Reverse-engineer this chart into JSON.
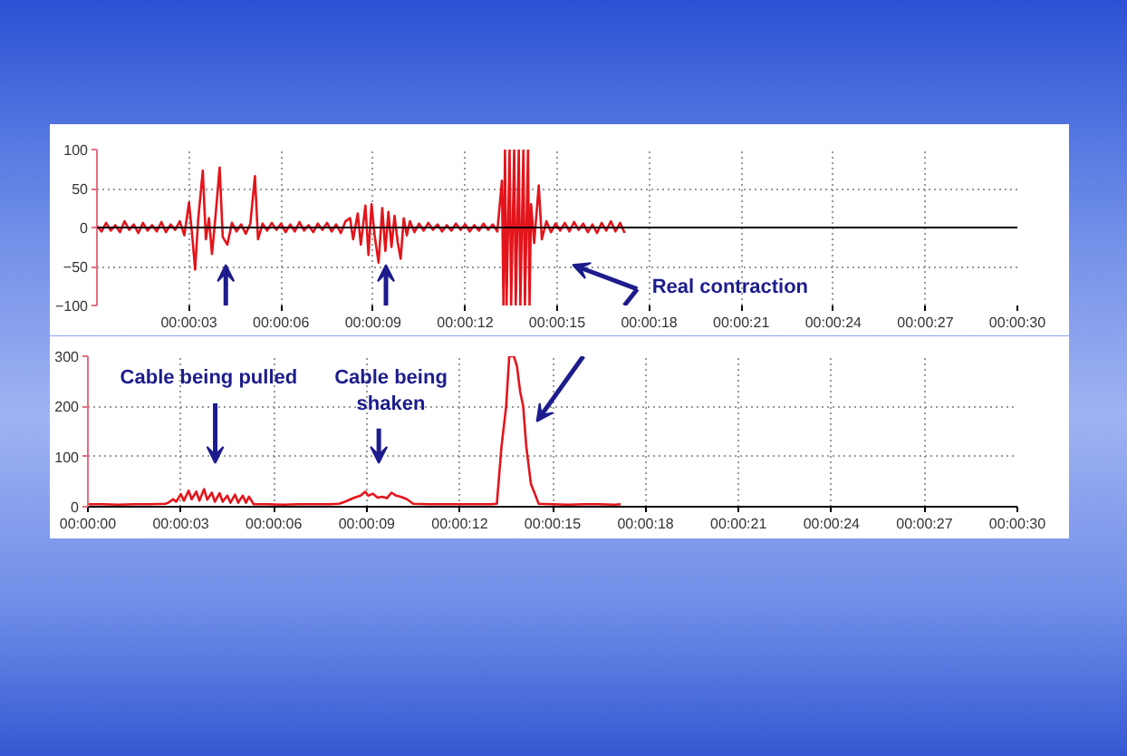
{
  "chart_data": [
    {
      "type": "line",
      "color": "#e3141b",
      "xlim": [
        0,
        30
      ],
      "ylim": [
        -100,
        100
      ],
      "xticks": [
        {
          "value": 3,
          "label": "00:00:03"
        },
        {
          "value": 6,
          "label": "00:00:06"
        },
        {
          "value": 9,
          "label": "00:00:09"
        },
        {
          "value": 12,
          "label": "00:00:12"
        },
        {
          "value": 15,
          "label": "00:00:15"
        },
        {
          "value": 18,
          "label": "00:00:18"
        },
        {
          "value": 21,
          "label": "00:00:21"
        },
        {
          "value": 24,
          "label": "00:00:24"
        },
        {
          "value": 27,
          "label": "00:00:27"
        },
        {
          "value": 30,
          "label": "00:00:30"
        }
      ],
      "yticks": [
        -100,
        -50,
        0,
        50,
        100
      ],
      "grid": true,
      "ref_lines": [
        {
          "axis": "y",
          "value": 0,
          "color": "#000000"
        }
      ],
      "annotations": [
        "Real contraction"
      ],
      "x": [
        0.0,
        0.15,
        0.3,
        0.45,
        0.6,
        0.75,
        0.9,
        1.05,
        1.2,
        1.35,
        1.5,
        1.65,
        1.8,
        1.95,
        2.1,
        2.25,
        2.4,
        2.55,
        2.7,
        2.85,
        3.0,
        3.1,
        3.2,
        3.3,
        3.45,
        3.55,
        3.65,
        3.75,
        3.85,
        4.0,
        4.1,
        4.25,
        4.4,
        4.55,
        4.7,
        4.85,
        5.0,
        5.15,
        5.25,
        5.4,
        5.55,
        5.7,
        5.85,
        6.0,
        6.15,
        6.3,
        6.45,
        6.6,
        6.75,
        6.9,
        7.05,
        7.2,
        7.35,
        7.5,
        7.65,
        7.8,
        7.95,
        8.1,
        8.25,
        8.35,
        8.5,
        8.6,
        8.75,
        8.85,
        8.95,
        9.05,
        9.18,
        9.3,
        9.4,
        9.5,
        9.6,
        9.7,
        9.8,
        9.9,
        10.0,
        10.1,
        10.2,
        10.35,
        10.5,
        10.65,
        10.8,
        10.95,
        11.1,
        11.25,
        11.4,
        11.55,
        11.7,
        11.85,
        12.0,
        12.15,
        12.3,
        12.45,
        12.6,
        12.75,
        12.9,
        13.05,
        13.2,
        13.25,
        13.3,
        13.35,
        13.45,
        13.5,
        13.6,
        13.65,
        13.75,
        13.8,
        13.9,
        13.95,
        14.05,
        14.1,
        14.15,
        14.25,
        14.4,
        14.5,
        14.65,
        14.8,
        14.95,
        15.1,
        15.25,
        15.4,
        15.55,
        15.7,
        15.85,
        16.0,
        16.15,
        16.3,
        16.45,
        16.6,
        16.75,
        16.9,
        17.05,
        17.2
      ],
      "values": [
        2,
        -5,
        6,
        -4,
        3,
        -6,
        8,
        -3,
        4,
        -7,
        6,
        -4,
        3,
        -5,
        7,
        -6,
        4,
        -3,
        8,
        -10,
        32,
        -8,
        -54,
        10,
        73,
        -15,
        12,
        -34,
        8,
        77,
        -12,
        -22,
        6,
        -5,
        4,
        -8,
        5,
        66,
        -15,
        5,
        -4,
        6,
        -3,
        5,
        -6,
        4,
        -5,
        7,
        -4,
        3,
        -6,
        5,
        -3,
        6,
        -5,
        4,
        -7,
        8,
        12,
        -15,
        18,
        -22,
        28,
        -35,
        30,
        -10,
        -45,
        25,
        -30,
        20,
        -25,
        15,
        -18,
        -40,
        12,
        -10,
        8,
        -6,
        5,
        -4,
        6,
        -3,
        4,
        -5,
        3,
        -4,
        5,
        -3,
        4,
        -5,
        3,
        -4,
        5,
        -3,
        4,
        -5,
        60,
        -100,
        100,
        -100,
        100,
        -100,
        100,
        -100,
        100,
        -100,
        100,
        -100,
        100,
        -100,
        30,
        -20,
        54,
        -15,
        8,
        -6,
        5,
        -4,
        6,
        -5,
        7,
        -3,
        5,
        -6,
        4,
        -7,
        6,
        -4,
        8,
        -5,
        6,
        -7
      ]
    },
    {
      "type": "line",
      "color": "#e3141b",
      "xlim": [
        0,
        30
      ],
      "ylim": [
        0,
        300
      ],
      "xticks": [
        {
          "value": 0,
          "label": "00:00:00"
        },
        {
          "value": 3,
          "label": "00:00:03"
        },
        {
          "value": 6,
          "label": "00:00:06"
        },
        {
          "value": 9,
          "label": "00:00:09"
        },
        {
          "value": 12,
          "label": "00:00:12"
        },
        {
          "value": 15,
          "label": "00:00:15"
        },
        {
          "value": 18,
          "label": "00:00:18"
        },
        {
          "value": 21,
          "label": "00:00:21"
        },
        {
          "value": 24,
          "label": "00:00:24"
        },
        {
          "value": 27,
          "label": "00:00:27"
        },
        {
          "value": 30,
          "label": "00:00:30"
        }
      ],
      "yticks": [
        0,
        100,
        200,
        300
      ],
      "grid": true,
      "annotations": [
        "Cable being pulled",
        "Cable being\nshaken"
      ],
      "x": [
        0,
        0.5,
        1.0,
        1.5,
        2.0,
        2.5,
        2.6,
        2.75,
        2.85,
        3.0,
        3.1,
        3.25,
        3.35,
        3.5,
        3.6,
        3.75,
        3.85,
        4.0,
        4.1,
        4.25,
        4.35,
        4.5,
        4.6,
        4.75,
        4.85,
        5.0,
        5.1,
        5.2,
        5.35,
        5.8,
        6.3,
        6.8,
        7.3,
        7.8,
        8.1,
        8.3,
        8.6,
        8.8,
        8.95,
        9.05,
        9.2,
        9.35,
        9.5,
        9.65,
        9.8,
        9.95,
        10.1,
        10.3,
        10.5,
        11.0,
        11.5,
        12.0,
        12.5,
        13.0,
        13.2,
        13.35,
        13.5,
        13.6,
        13.75,
        13.85,
        13.95,
        14.05,
        14.15,
        14.3,
        14.4,
        14.55,
        15.0,
        15.5,
        16.0,
        16.5,
        17.0,
        17.2
      ],
      "values": [
        5,
        5,
        4,
        5,
        5,
        6,
        8,
        15,
        10,
        25,
        12,
        32,
        15,
        30,
        12,
        35,
        14,
        28,
        10,
        27,
        10,
        22,
        8,
        24,
        8,
        22,
        8,
        20,
        5,
        5,
        4,
        5,
        5,
        5,
        6,
        10,
        18,
        22,
        30,
        22,
        26,
        18,
        20,
        17,
        28,
        22,
        20,
        15,
        6,
        5,
        5,
        5,
        5,
        5,
        6,
        120,
        200,
        300,
        300,
        280,
        230,
        200,
        120,
        45,
        30,
        6,
        5,
        4,
        5,
        5,
        4,
        5
      ]
    }
  ]
}
